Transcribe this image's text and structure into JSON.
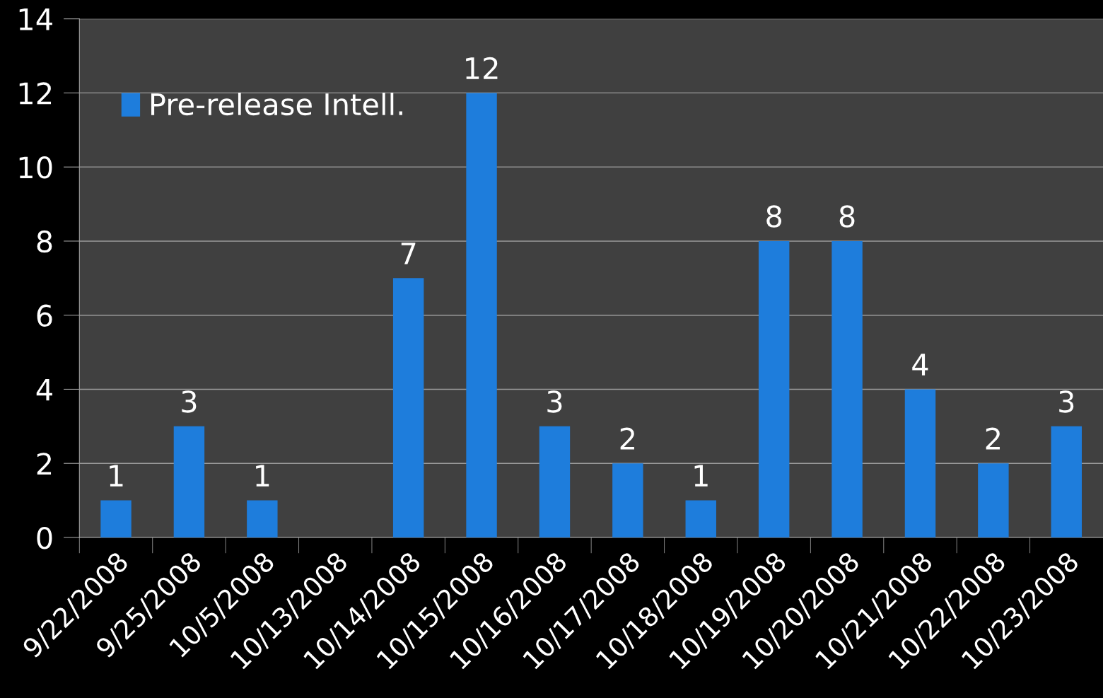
{
  "chart_data": {
    "type": "bar",
    "categories": [
      "9/22/2008",
      "9/25/2008",
      "10/5/2008",
      "10/13/2008",
      "10/14/2008",
      "10/15/2008",
      "10/16/2008",
      "10/17/2008",
      "10/18/2008",
      "10/19/2008",
      "10/20/2008",
      "10/21/2008",
      "10/22/2008",
      "10/23/2008"
    ],
    "series": [
      {
        "name": "Pre-release Intell.",
        "color": "#1e7ddc",
        "values": [
          1,
          3,
          1,
          null,
          7,
          12,
          3,
          2,
          1,
          8,
          8,
          4,
          2,
          3
        ]
      }
    ],
    "ylim": [
      0,
      14
    ],
    "yticks": [
      0,
      2,
      4,
      6,
      8,
      10,
      12,
      14
    ],
    "grid": "y",
    "legend": "top left",
    "data_labels": true
  }
}
